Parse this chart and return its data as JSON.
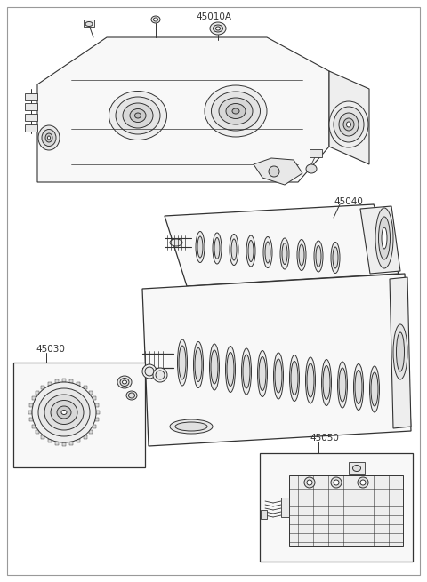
{
  "title": "45010A",
  "bg_color": "#ffffff",
  "border_color": "#888888",
  "line_color": "#333333",
  "label_45040": "45040",
  "label_45030": "45030",
  "label_45050": "45050",
  "fig_width": 4.8,
  "fig_height": 6.55,
  "dpi": 100
}
